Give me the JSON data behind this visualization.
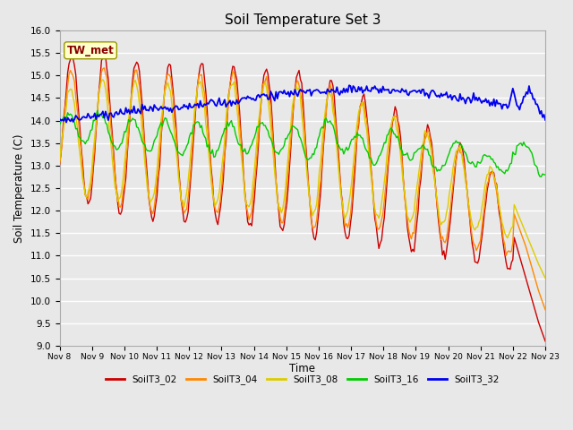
{
  "title": "Soil Temperature Set 3",
  "xlabel": "Time",
  "ylabel": "Soil Temperature (C)",
  "ylim": [
    9.0,
    16.0
  ],
  "yticks": [
    9.0,
    9.5,
    10.0,
    10.5,
    11.0,
    11.5,
    12.0,
    12.5,
    13.0,
    13.5,
    14.0,
    14.5,
    15.0,
    15.5,
    16.0
  ],
  "series_colors": {
    "SoilT3_02": "#cc0000",
    "SoilT3_04": "#ff8800",
    "SoilT3_08": "#ddcc00",
    "SoilT3_16": "#00cc00",
    "SoilT3_32": "#0000ee"
  },
  "annotation_text": "TW_met",
  "annotation_box_color": "#ffffcc",
  "annotation_text_color": "#880000",
  "bg_color": "#e8e8e8",
  "plot_bg_color": "#e8e8e8",
  "grid_color": "#ffffff",
  "legend_labels": [
    "SoilT3_02",
    "SoilT3_04",
    "SoilT3_08",
    "SoilT3_16",
    "SoilT3_32"
  ],
  "legend_colors": [
    "#cc0000",
    "#ff8800",
    "#ddcc00",
    "#00cc00",
    "#0000ee"
  ],
  "n_days": 15,
  "n_points": 360
}
